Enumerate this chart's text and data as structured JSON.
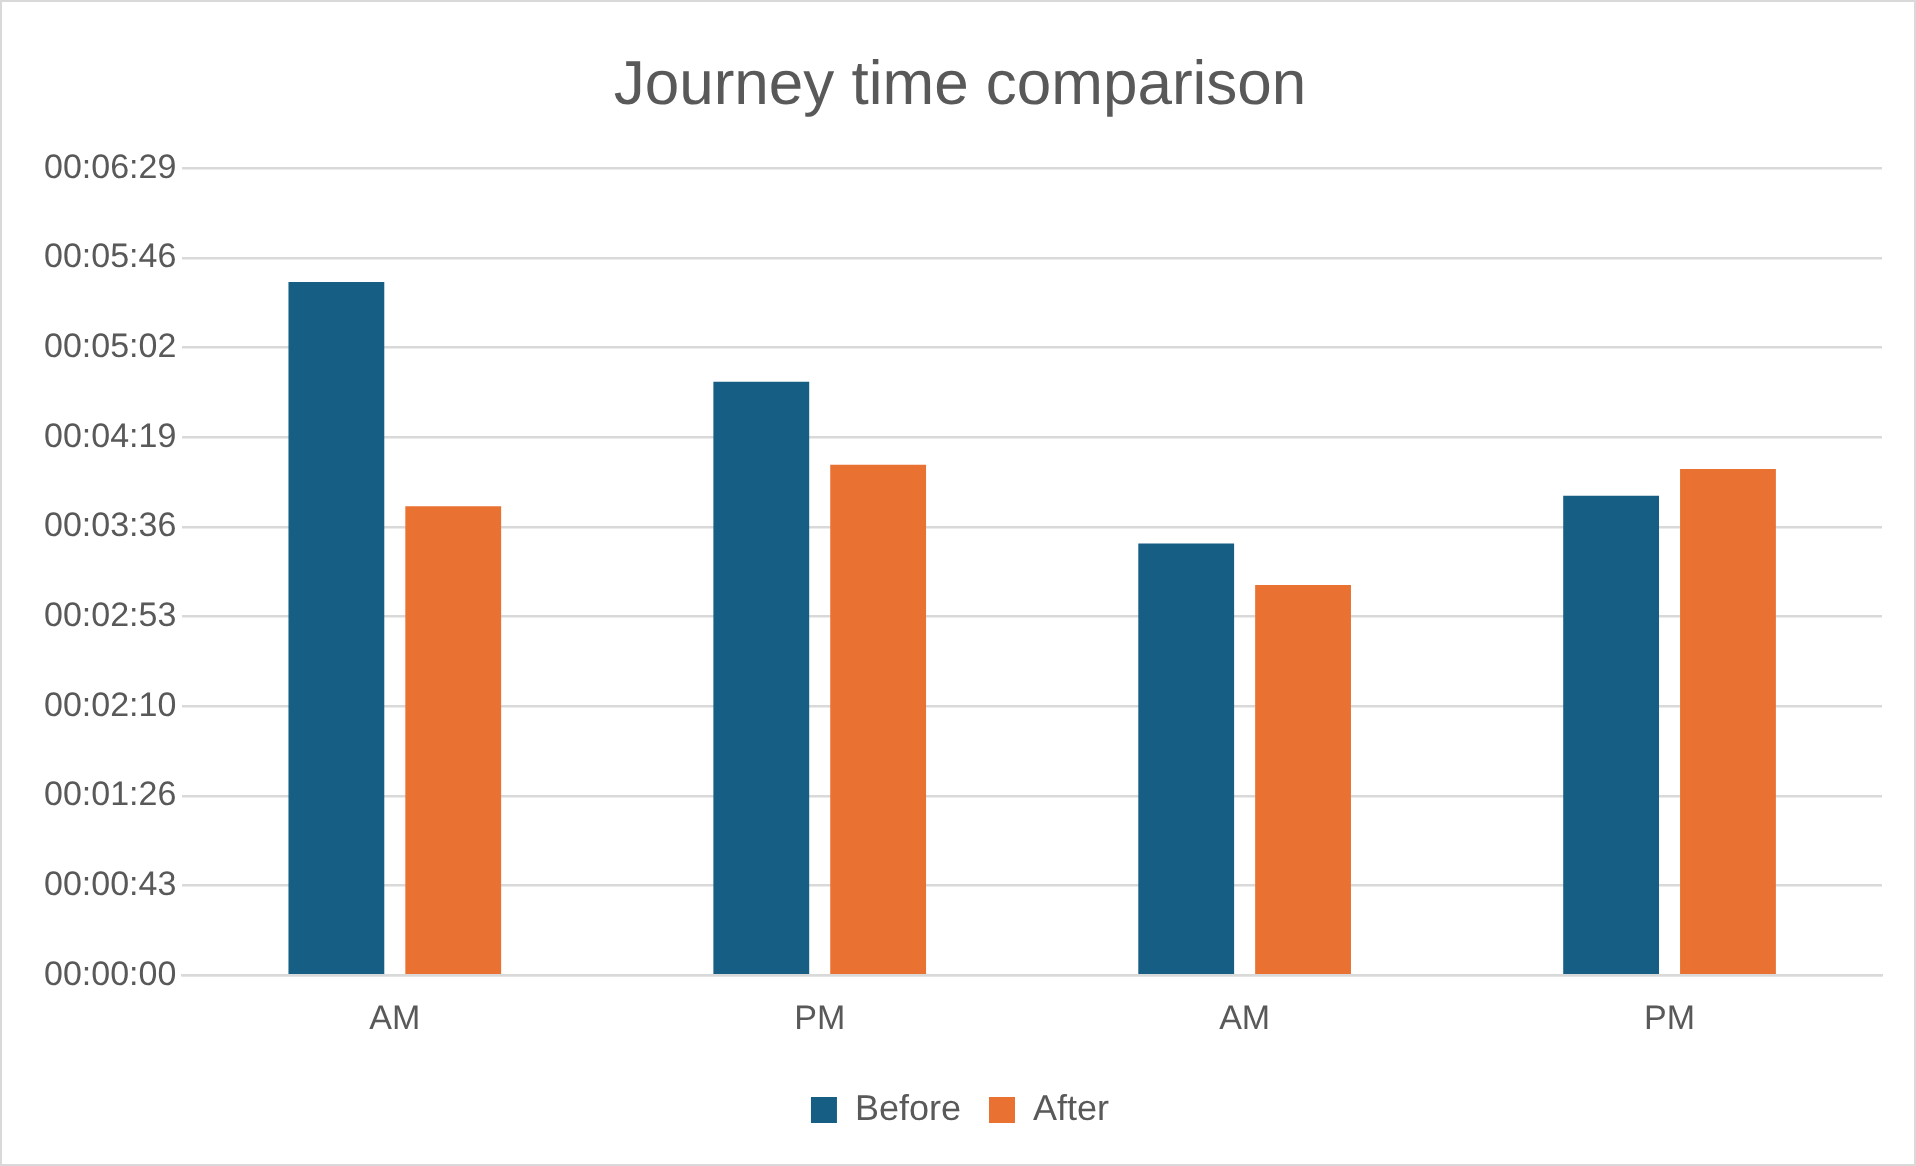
{
  "chart_data": {
    "type": "bar",
    "title": "Journey time comparison",
    "categories": [
      "AM",
      "PM",
      "AM",
      "PM"
    ],
    "series": [
      {
        "name": "Before",
        "color": "#165e83",
        "values": [
          334,
          286,
          208,
          231
        ]
      },
      {
        "name": "After",
        "color": "#e97132",
        "values": [
          226,
          246,
          188,
          244
        ]
      }
    ],
    "ylim": [
      0,
      388.8
    ],
    "yticks": [
      {
        "value": 0,
        "label": "00:00:00"
      },
      {
        "value": 43.2,
        "label": "00:00:43"
      },
      {
        "value": 86.4,
        "label": "00:01:26"
      },
      {
        "value": 129.6,
        "label": "00:02:10"
      },
      {
        "value": 172.8,
        "label": "00:02:53"
      },
      {
        "value": 216,
        "label": "00:03:36"
      },
      {
        "value": 259.2,
        "label": "00:04:19"
      },
      {
        "value": 302.4,
        "label": "00:05:02"
      },
      {
        "value": 345.6,
        "label": "00:05:46"
      },
      {
        "value": 388.8,
        "label": "00:06:29"
      }
    ],
    "grid": "y",
    "legend": "bottom"
  }
}
